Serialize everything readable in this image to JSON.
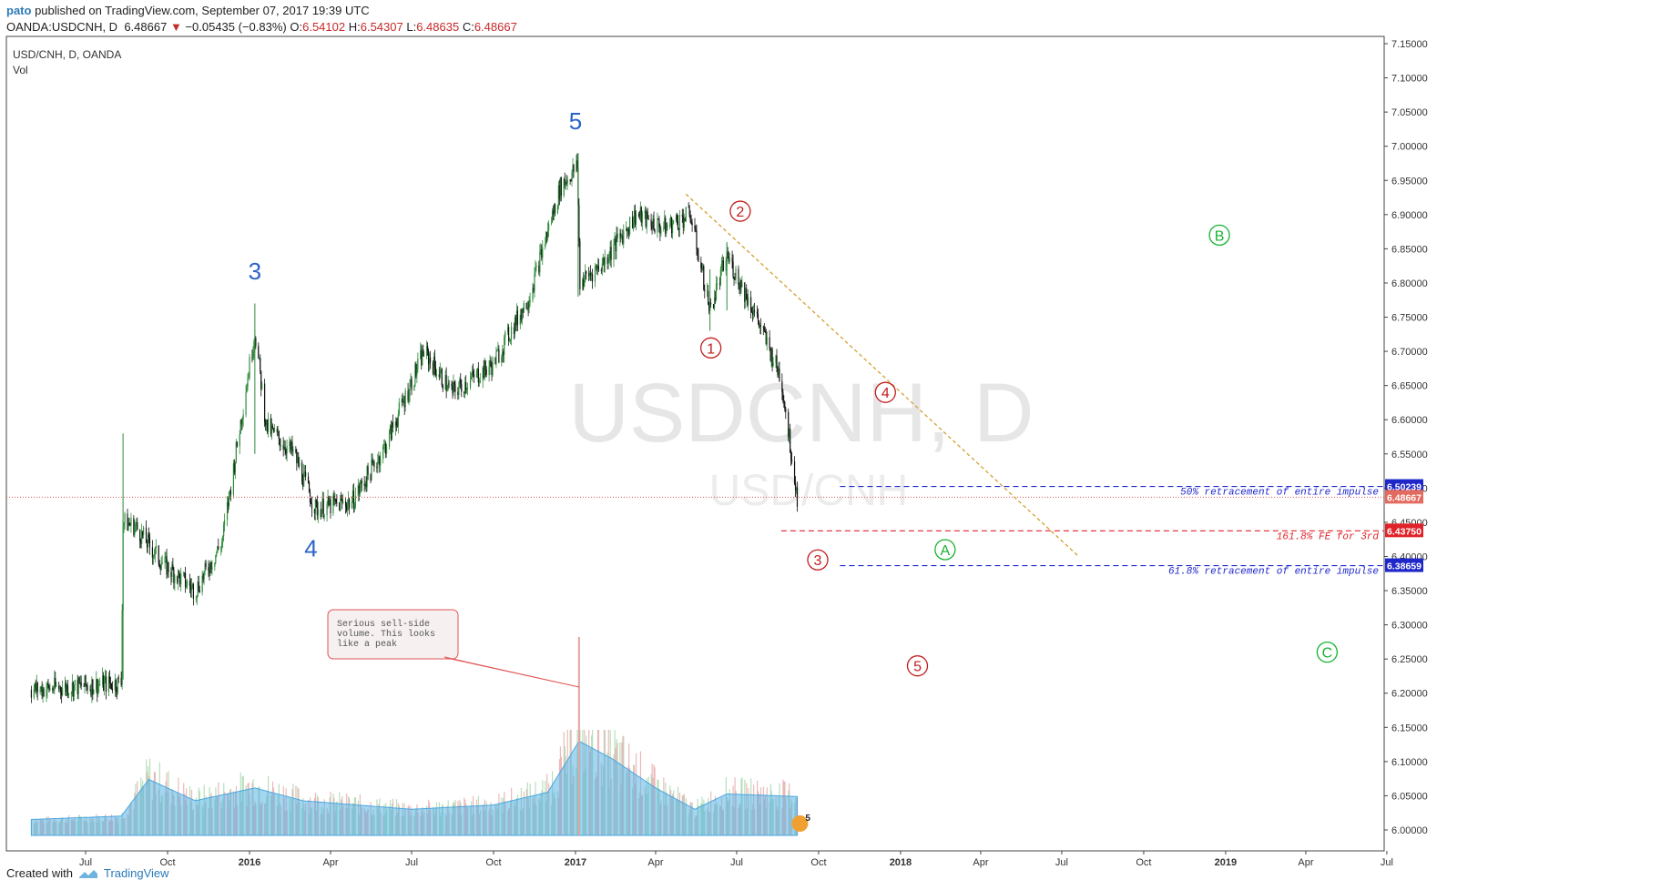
{
  "header": {
    "user": "pato",
    "published": "published on TradingView.com, September 07, 2017 19:39 UTC",
    "symbol": "OANDA:USDCNH, D",
    "last": "6.48667",
    "arrow": "▼",
    "change": "−0.05435 (−0.83%)",
    "o_label": "O:",
    "o": "6.54102",
    "h_label": "H:",
    "h": "6.54307",
    "l_label": "L:",
    "l": "6.48635",
    "c_label": "C:",
    "c": "6.48667"
  },
  "chart_data": {
    "type": "candlestick",
    "title": "USD/CNH, D, OANDA",
    "subtitle": "Vol",
    "watermark": "USDCNH, D",
    "watermark_sub": "USD/CNH",
    "y_ticks": [
      "7.15000",
      "7.10000",
      "7.05000",
      "7.00000",
      "6.95000",
      "6.90000",
      "6.85000",
      "6.80000",
      "6.75000",
      "6.70000",
      "6.65000",
      "6.60000",
      "6.55000",
      "6.50000",
      "6.45000",
      "6.40000",
      "6.35000",
      "6.30000",
      "6.25000",
      "6.20000",
      "6.15000",
      "6.10000",
      "6.05000",
      "6.00000"
    ],
    "ylim": [
      6.0,
      7.15
    ],
    "x_ticks": [
      "Jul",
      "Oct",
      "2016",
      "Apr",
      "Jul",
      "Oct",
      "2017",
      "Apr",
      "Jul",
      "Oct",
      "2018",
      "Apr",
      "Jul",
      "Oct",
      "2019",
      "Apr",
      "Jul"
    ],
    "price_path": [
      {
        "date": "2015-05-01",
        "price": 6.205
      },
      {
        "date": "2015-08-10",
        "price": 6.215
      },
      {
        "date": "2015-08-12",
        "price": 6.45
      },
      {
        "date": "2015-08-25",
        "price": 6.445
      },
      {
        "date": "2015-09-25",
        "price": 6.39
      },
      {
        "date": "2015-11-01",
        "price": 6.35
      },
      {
        "date": "2015-12-01",
        "price": 6.42
      },
      {
        "date": "2016-01-07",
        "price": 6.73
      },
      {
        "date": "2016-01-20",
        "price": 6.59
      },
      {
        "date": "2016-02-20",
        "price": 6.55
      },
      {
        "date": "2016-03-15",
        "price": 6.47
      },
      {
        "date": "2016-04-25",
        "price": 6.48
      },
      {
        "date": "2016-06-01",
        "price": 6.56
      },
      {
        "date": "2016-07-15",
        "price": 6.7
      },
      {
        "date": "2016-08-15",
        "price": 6.64
      },
      {
        "date": "2016-09-30",
        "price": 6.68
      },
      {
        "date": "2016-11-10",
        "price": 6.78
      },
      {
        "date": "2016-12-15",
        "price": 6.94
      },
      {
        "date": "2017-01-03",
        "price": 6.97
      },
      {
        "date": "2017-01-06",
        "price": 6.8
      },
      {
        "date": "2017-02-01",
        "price": 6.83
      },
      {
        "date": "2017-03-10",
        "price": 6.9
      },
      {
        "date": "2017-04-10",
        "price": 6.88
      },
      {
        "date": "2017-05-10",
        "price": 6.9
      },
      {
        "date": "2017-06-01",
        "price": 6.76
      },
      {
        "date": "2017-06-20",
        "price": 6.84
      },
      {
        "date": "2017-07-20",
        "price": 6.76
      },
      {
        "date": "2017-08-20",
        "price": 6.66
      },
      {
        "date": "2017-09-07",
        "price": 6.487
      }
    ],
    "volume_path": [
      {
        "date": "2015-05-01",
        "vol": 0.08
      },
      {
        "date": "2015-08-10",
        "vol": 0.12
      },
      {
        "date": "2015-09-10",
        "vol": 0.55
      },
      {
        "date": "2015-11-01",
        "vol": 0.3
      },
      {
        "date": "2016-01-07",
        "vol": 0.45
      },
      {
        "date": "2016-03-01",
        "vol": 0.3
      },
      {
        "date": "2016-07-01",
        "vol": 0.2
      },
      {
        "date": "2016-10-01",
        "vol": 0.25
      },
      {
        "date": "2016-12-01",
        "vol": 0.4
      },
      {
        "date": "2017-01-05",
        "vol": 1.0
      },
      {
        "date": "2017-02-10",
        "vol": 0.8
      },
      {
        "date": "2017-04-01",
        "vol": 0.45
      },
      {
        "date": "2017-05-15",
        "vol": 0.2
      },
      {
        "date": "2017-06-20",
        "vol": 0.38
      },
      {
        "date": "2017-09-05",
        "vol": 0.35
      }
    ],
    "current_price": 6.48667,
    "levels": [
      {
        "price": 6.50239,
        "label": "6.50239",
        "color": "#1f27c9",
        "note": "50% retracement of entire impulse"
      },
      {
        "price": 6.4375,
        "label": "6.43750",
        "color": "#e0232a",
        "note": "161.8% FE for 3rd"
      },
      {
        "price": 6.38659,
        "label": "6.38659",
        "color": "#1f27c9",
        "note": "61.8% retracement of entire impulse"
      }
    ],
    "current_label": "6.48667",
    "trendline": {
      "from": {
        "date": "2017-05-05",
        "price": 6.93
      },
      "to": {
        "date": "2018-07-20",
        "price": 6.4
      },
      "color": "#d4a032"
    },
    "wave_labels_major": [
      {
        "text": "3",
        "date": "2016-01-07",
        "price": 6.805,
        "color": "#2b63c8"
      },
      {
        "text": "4",
        "date": "2016-03-10",
        "price": 6.4,
        "color": "#2b63c8"
      },
      {
        "text": "5",
        "date": "2017-01-01",
        "price": 7.025,
        "color": "#2b63c8"
      }
    ],
    "wave_labels_circled": [
      {
        "text": "1",
        "date": "2017-06-02",
        "price": 6.705,
        "color": "#c21d1d"
      },
      {
        "text": "2",
        "date": "2017-07-05",
        "price": 6.905,
        "color": "#c21d1d"
      },
      {
        "text": "3",
        "date": "2017-09-30",
        "price": 6.395,
        "color": "#c21d1d"
      },
      {
        "text": "4",
        "date": "2017-12-15",
        "price": 6.64,
        "color": "#c21d1d"
      },
      {
        "text": "5",
        "date": "2018-01-20",
        "price": 6.24,
        "color": "#c21d1d"
      },
      {
        "text": "A",
        "date": "2018-02-20",
        "price": 6.41,
        "color": "#19b233"
      },
      {
        "text": "B",
        "date": "2018-12-25",
        "price": 6.87,
        "color": "#19b233"
      },
      {
        "text": "C",
        "date": "2019-04-25",
        "price": 6.26,
        "color": "#19b233"
      }
    ],
    "callout": {
      "text": [
        "Serious sell-side",
        "volume. This looks",
        "like a peak"
      ]
    }
  },
  "footer": {
    "created_with": "Created with",
    "brand": "TradingView"
  }
}
